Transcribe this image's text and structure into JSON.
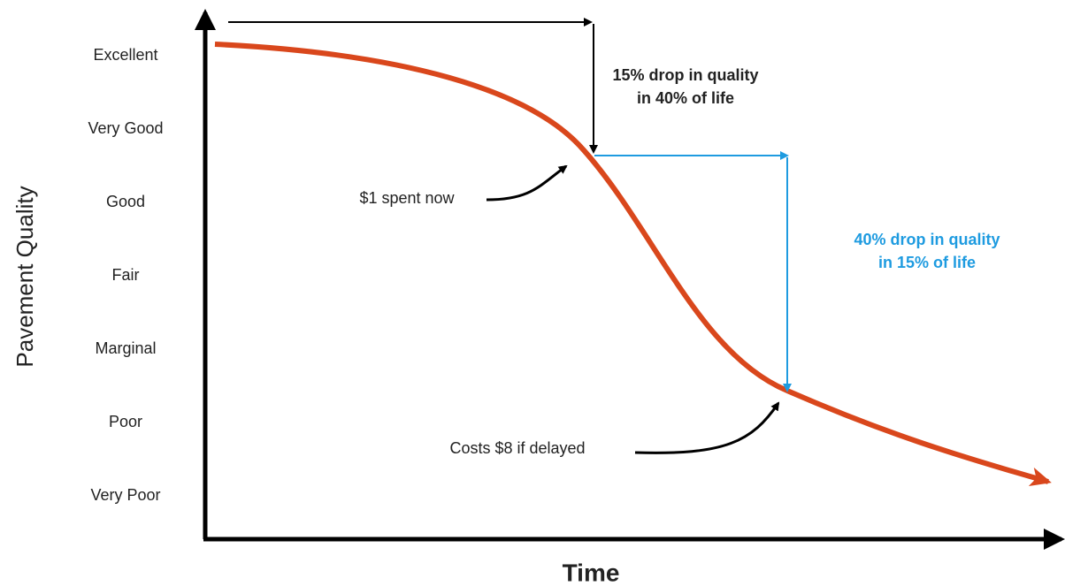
{
  "y_axis": {
    "title": "Pavement Quality",
    "levels": [
      "Excellent",
      "Very Good",
      "Good",
      "Fair",
      "Marginal",
      "Poor",
      "Very Poor"
    ]
  },
  "x_axis": {
    "title": "Time"
  },
  "annotations": {
    "early_drop": [
      "15% drop in quality",
      "in 40% of  life"
    ],
    "late_drop": [
      "40% drop in quality",
      "in 15% of life"
    ],
    "spent_now": "$1 spent now",
    "delayed": "Costs $8 if delayed"
  }
}
